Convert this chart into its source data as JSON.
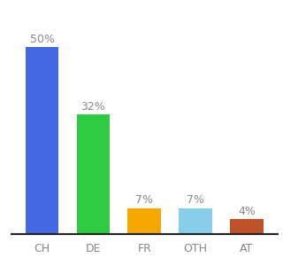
{
  "categories": [
    "CH",
    "DE",
    "FR",
    "OTH",
    "AT"
  ],
  "values": [
    50,
    32,
    7,
    7,
    4
  ],
  "bar_colors": [
    "#4169e1",
    "#2ecc40",
    "#f5a800",
    "#87ceeb",
    "#c0522a"
  ],
  "label_color": "#888888",
  "value_labels": [
    "50%",
    "32%",
    "7%",
    "7%",
    "4%"
  ],
  "ylim": [
    0,
    57
  ],
  "background_color": "#ffffff",
  "label_fontsize": 9,
  "tick_fontsize": 9,
  "bar_width": 0.65
}
